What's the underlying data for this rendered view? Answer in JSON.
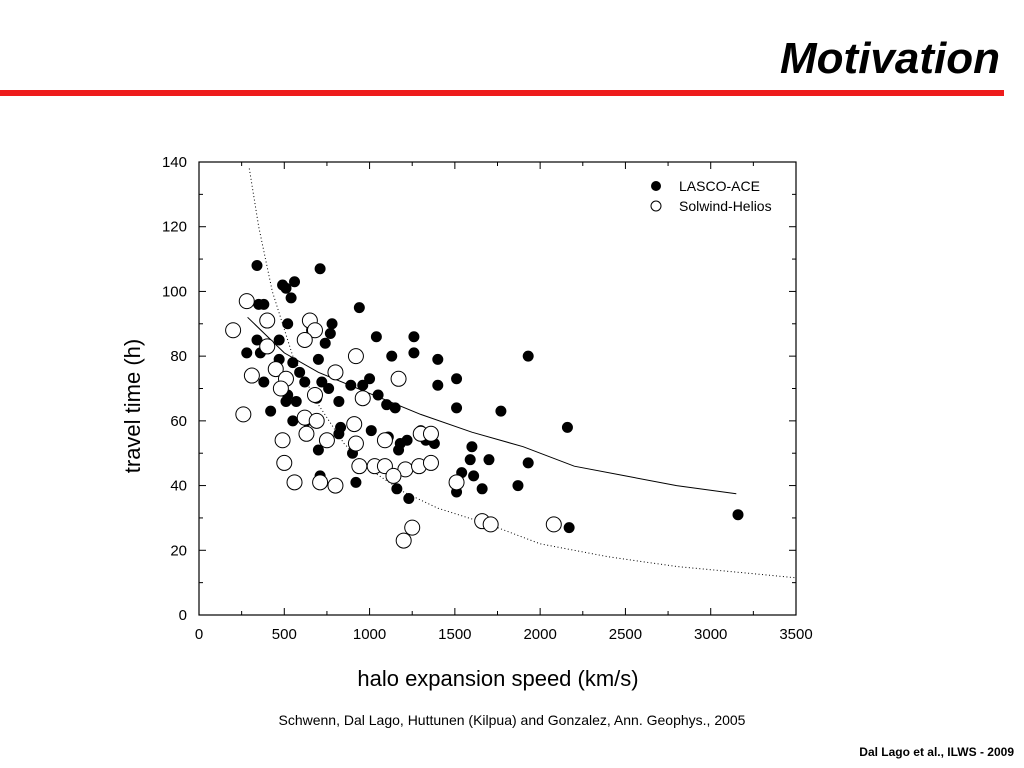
{
  "slide": {
    "title": "Motivation",
    "citation": "Schwenn, Dal Lago, Huttunen (Kilpua) and Gonzalez, Ann. Geophys., 2005",
    "footer": "Dal Lago et al., ILWS - 2009",
    "accent_color": "#ee1c1c"
  },
  "chart_data": {
    "type": "scatter",
    "xlabel": "halo expansion speed (km/s)",
    "ylabel": "travel time (h)",
    "xlim": [
      0,
      3500
    ],
    "ylim": [
      0,
      140
    ],
    "xticks": [
      0,
      500,
      1000,
      1500,
      2000,
      2500,
      3000,
      3500
    ],
    "yticks": [
      0,
      20,
      40,
      60,
      80,
      100,
      120,
      140
    ],
    "grid": false,
    "legend_position": "top-right",
    "series": [
      {
        "name": "LASCO-ACE",
        "marker": "filled-circle",
        "points": [
          [
            340,
            108
          ],
          [
            710,
            107
          ],
          [
            490,
            102
          ],
          [
            510,
            101
          ],
          [
            560,
            103
          ],
          [
            540,
            98
          ],
          [
            350,
            96
          ],
          [
            380,
            96
          ],
          [
            940,
            95
          ],
          [
            520,
            90
          ],
          [
            780,
            90
          ],
          [
            660,
            88
          ],
          [
            770,
            87
          ],
          [
            1040,
            86
          ],
          [
            1260,
            86
          ],
          [
            470,
            85
          ],
          [
            340,
            85
          ],
          [
            740,
            84
          ],
          [
            1260,
            81
          ],
          [
            280,
            81
          ],
          [
            360,
            81
          ],
          [
            1130,
            80
          ],
          [
            700,
            79
          ],
          [
            1400,
            79
          ],
          [
            1930,
            80
          ],
          [
            470,
            79
          ],
          [
            550,
            78
          ],
          [
            590,
            75
          ],
          [
            620,
            72
          ],
          [
            380,
            72
          ],
          [
            720,
            72
          ],
          [
            890,
            71
          ],
          [
            1400,
            71
          ],
          [
            1510,
            73
          ],
          [
            1000,
            73
          ],
          [
            760,
            70
          ],
          [
            960,
            71
          ],
          [
            1050,
            68
          ],
          [
            520,
            68
          ],
          [
            510,
            66
          ],
          [
            570,
            66
          ],
          [
            690,
            67
          ],
          [
            820,
            66
          ],
          [
            1100,
            65
          ],
          [
            1150,
            64
          ],
          [
            420,
            63
          ],
          [
            1510,
            64
          ],
          [
            1770,
            63
          ],
          [
            550,
            60
          ],
          [
            630,
            60
          ],
          [
            830,
            58
          ],
          [
            820,
            56
          ],
          [
            1010,
            57
          ],
          [
            1110,
            55
          ],
          [
            1300,
            57
          ],
          [
            1330,
            54
          ],
          [
            1180,
            53
          ],
          [
            1220,
            54
          ],
          [
            1380,
            53
          ],
          [
            1600,
            52
          ],
          [
            1170,
            51
          ],
          [
            700,
            51
          ],
          [
            900,
            50
          ],
          [
            1930,
            47
          ],
          [
            1590,
            48
          ],
          [
            1700,
            48
          ],
          [
            1540,
            44
          ],
          [
            1610,
            43
          ],
          [
            710,
            43
          ],
          [
            920,
            41
          ],
          [
            1160,
            39
          ],
          [
            1660,
            39
          ],
          [
            1870,
            40
          ],
          [
            1510,
            38
          ],
          [
            1230,
            36
          ],
          [
            2160,
            58
          ],
          [
            2170,
            27
          ],
          [
            3160,
            31
          ]
        ]
      },
      {
        "name": "Solwind-Helios",
        "marker": "open-circle",
        "points": [
          [
            200,
            88
          ],
          [
            280,
            97
          ],
          [
            400,
            91
          ],
          [
            650,
            91
          ],
          [
            680,
            88
          ],
          [
            620,
            85
          ],
          [
            400,
            83
          ],
          [
            920,
            80
          ],
          [
            450,
            76
          ],
          [
            800,
            75
          ],
          [
            310,
            74
          ],
          [
            510,
            73
          ],
          [
            1170,
            73
          ],
          [
            480,
            70
          ],
          [
            680,
            68
          ],
          [
            960,
            67
          ],
          [
            620,
            61
          ],
          [
            690,
            60
          ],
          [
            260,
            62
          ],
          [
            910,
            59
          ],
          [
            1300,
            56
          ],
          [
            1360,
            56
          ],
          [
            630,
            56
          ],
          [
            750,
            54
          ],
          [
            1090,
            54
          ],
          [
            490,
            54
          ],
          [
            920,
            53
          ],
          [
            500,
            47
          ],
          [
            940,
            46
          ],
          [
            1030,
            46
          ],
          [
            1090,
            46
          ],
          [
            1210,
            45
          ],
          [
            1290,
            46
          ],
          [
            1360,
            47
          ],
          [
            1140,
            43
          ],
          [
            1510,
            41
          ],
          [
            560,
            41
          ],
          [
            710,
            41
          ],
          [
            800,
            40
          ],
          [
            1660,
            29
          ],
          [
            1710,
            28
          ],
          [
            2080,
            28
          ],
          [
            1250,
            27
          ],
          [
            1200,
            23
          ]
        ]
      }
    ],
    "fit_curve": [
      [
        285,
        92
      ],
      [
        500,
        81
      ],
      [
        700,
        75
      ],
      [
        1000,
        68.5
      ],
      [
        1300,
        62
      ],
      [
        1600,
        56.5
      ],
      [
        1900,
        52
      ],
      [
        2200,
        46
      ],
      [
        2500,
        43
      ],
      [
        2800,
        40
      ],
      [
        3150,
        37.5
      ]
    ],
    "dotted_curve": [
      [
        295,
        138
      ],
      [
        350,
        120
      ],
      [
        430,
        100
      ],
      [
        550,
        80
      ],
      [
        700,
        65
      ],
      [
        850,
        53
      ],
      [
        1000,
        45
      ],
      [
        1200,
        38
      ],
      [
        1400,
        33
      ],
      [
        1700,
        28
      ],
      [
        2000,
        22
      ],
      [
        2400,
        18
      ],
      [
        2800,
        15
      ],
      [
        3200,
        13
      ],
      [
        3500,
        11.5
      ]
    ]
  }
}
